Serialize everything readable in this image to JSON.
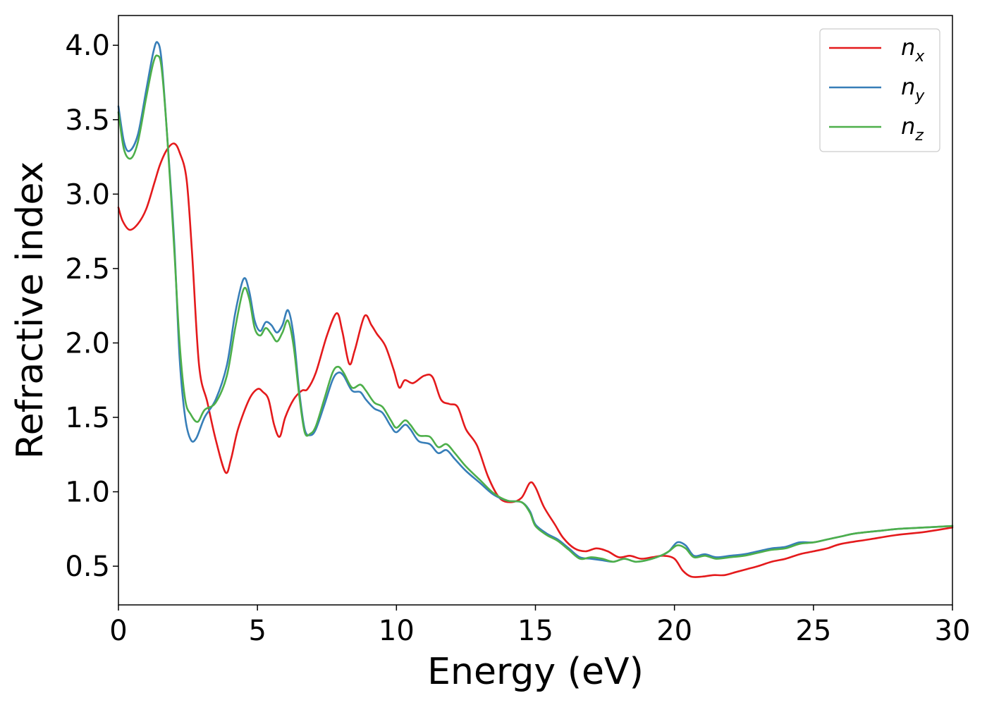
{
  "chart_data": {
    "type": "line",
    "xlabel": "Energy (eV)",
    "ylabel": "Refractive index",
    "xlim": [
      0,
      30
    ],
    "ylim": [
      0.24,
      4.2
    ],
    "xticks": [
      0,
      5,
      10,
      15,
      20,
      25,
      30
    ],
    "xtick_labels": [
      "0",
      "5",
      "10",
      "15",
      "20",
      "25",
      "30"
    ],
    "yticks": [
      0.5,
      1.0,
      1.5,
      2.0,
      2.5,
      3.0,
      3.5,
      4.0
    ],
    "ytick_labels": [
      "0.5",
      "1.0",
      "1.5",
      "2.0",
      "2.5",
      "3.0",
      "3.5",
      "4.0"
    ],
    "grid": false,
    "legend_position": "top-right",
    "series": [
      {
        "name": "n",
        "subscript": "x",
        "color": "#e41a1c",
        "x": [
          0,
          0.15,
          0.4,
          0.7,
          1.0,
          1.3,
          1.5,
          1.75,
          2.0,
          2.2,
          2.45,
          2.65,
          2.9,
          3.2,
          3.5,
          3.85,
          4.05,
          4.3,
          4.7,
          5.0,
          5.2,
          5.4,
          5.6,
          5.8,
          6.0,
          6.3,
          6.6,
          6.8,
          7.1,
          7.5,
          7.85,
          8.05,
          8.3,
          8.5,
          8.85,
          9.1,
          9.3,
          9.6,
          9.9,
          10.1,
          10.3,
          10.6,
          11.0,
          11.3,
          11.6,
          11.9,
          12.2,
          12.5,
          12.9,
          13.3,
          13.7,
          14.1,
          14.5,
          14.8,
          15.0,
          15.3,
          15.7,
          16.0,
          16.4,
          16.8,
          17.2,
          17.6,
          18.0,
          18.4,
          18.8,
          19.2,
          19.6,
          20.0,
          20.3,
          20.6,
          21.0,
          21.4,
          21.8,
          22.2,
          22.6,
          23.0,
          23.5,
          24.0,
          24.5,
          25.0,
          25.5,
          26.0,
          27.0,
          28.0,
          29.0,
          30.0
        ],
        "y": [
          2.91,
          2.82,
          2.76,
          2.8,
          2.9,
          3.08,
          3.2,
          3.3,
          3.34,
          3.28,
          3.1,
          2.6,
          1.85,
          1.6,
          1.35,
          1.13,
          1.22,
          1.42,
          1.62,
          1.69,
          1.67,
          1.62,
          1.45,
          1.37,
          1.5,
          1.62,
          1.68,
          1.69,
          1.8,
          2.05,
          2.2,
          2.08,
          1.86,
          1.95,
          2.18,
          2.12,
          2.06,
          1.98,
          1.82,
          1.7,
          1.75,
          1.73,
          1.78,
          1.77,
          1.62,
          1.59,
          1.57,
          1.42,
          1.31,
          1.1,
          0.96,
          0.93,
          0.96,
          1.06,
          1.03,
          0.9,
          0.78,
          0.69,
          0.62,
          0.6,
          0.62,
          0.6,
          0.56,
          0.57,
          0.55,
          0.56,
          0.57,
          0.55,
          0.47,
          0.43,
          0.43,
          0.44,
          0.44,
          0.46,
          0.48,
          0.5,
          0.53,
          0.55,
          0.58,
          0.6,
          0.62,
          0.65,
          0.68,
          0.71,
          0.73,
          0.76
        ]
      },
      {
        "name": "n",
        "subscript": "y",
        "color": "#377eb8",
        "x": [
          0,
          0.2,
          0.4,
          0.7,
          1.0,
          1.25,
          1.4,
          1.55,
          1.75,
          2.0,
          2.2,
          2.4,
          2.6,
          2.8,
          3.1,
          3.5,
          3.9,
          4.2,
          4.5,
          4.7,
          4.9,
          5.1,
          5.3,
          5.5,
          5.7,
          5.9,
          6.1,
          6.3,
          6.5,
          6.7,
          6.9,
          7.1,
          7.4,
          7.7,
          7.9,
          8.1,
          8.4,
          8.7,
          8.9,
          9.2,
          9.5,
          9.8,
          10.0,
          10.3,
          10.5,
          10.8,
          11.2,
          11.5,
          11.8,
          12.1,
          12.5,
          13.0,
          13.5,
          14.0,
          14.5,
          14.8,
          15.0,
          15.4,
          15.8,
          16.2,
          16.6,
          17.0,
          17.4,
          17.8,
          18.2,
          18.6,
          19.0,
          19.5,
          19.8,
          20.1,
          20.4,
          20.7,
          21.1,
          21.5,
          22.0,
          22.5,
          23.0,
          23.5,
          24.0,
          24.5,
          25.0,
          25.5,
          26.0,
          26.5,
          27.5,
          28.0,
          29.0,
          30.0
        ],
        "y": [
          3.59,
          3.35,
          3.29,
          3.4,
          3.7,
          3.95,
          4.02,
          3.9,
          3.4,
          2.7,
          1.9,
          1.5,
          1.35,
          1.36,
          1.5,
          1.62,
          1.85,
          2.2,
          2.43,
          2.35,
          2.15,
          2.08,
          2.14,
          2.12,
          2.07,
          2.12,
          2.22,
          2.05,
          1.68,
          1.42,
          1.38,
          1.42,
          1.58,
          1.75,
          1.8,
          1.78,
          1.68,
          1.67,
          1.62,
          1.56,
          1.53,
          1.44,
          1.4,
          1.45,
          1.42,
          1.34,
          1.32,
          1.26,
          1.28,
          1.22,
          1.14,
          1.06,
          0.98,
          0.94,
          0.93,
          0.87,
          0.78,
          0.72,
          0.68,
          0.62,
          0.56,
          0.55,
          0.54,
          0.53,
          0.55,
          0.53,
          0.54,
          0.57,
          0.6,
          0.66,
          0.64,
          0.57,
          0.58,
          0.56,
          0.57,
          0.58,
          0.6,
          0.62,
          0.63,
          0.66,
          0.66,
          0.68,
          0.7,
          0.72,
          0.74,
          0.75,
          0.76,
          0.77
        ]
      },
      {
        "name": "n",
        "subscript": "z",
        "color": "#4daf4a",
        "x": [
          0,
          0.2,
          0.45,
          0.7,
          1.0,
          1.25,
          1.4,
          1.55,
          1.75,
          2.0,
          2.2,
          2.4,
          2.6,
          2.85,
          3.1,
          3.5,
          3.9,
          4.2,
          4.5,
          4.7,
          4.9,
          5.1,
          5.3,
          5.5,
          5.7,
          5.9,
          6.1,
          6.3,
          6.5,
          6.7,
          6.9,
          7.1,
          7.4,
          7.7,
          7.9,
          8.1,
          8.4,
          8.7,
          8.9,
          9.2,
          9.5,
          9.8,
          10.0,
          10.3,
          10.5,
          10.8,
          11.2,
          11.5,
          11.8,
          12.1,
          12.5,
          13.0,
          13.5,
          14.0,
          14.5,
          14.8,
          15.0,
          15.4,
          15.8,
          16.2,
          16.6,
          17.0,
          17.4,
          17.8,
          18.2,
          18.6,
          19.0,
          19.5,
          19.8,
          20.1,
          20.4,
          20.7,
          21.1,
          21.5,
          22.0,
          22.5,
          23.0,
          23.5,
          24.0,
          24.5,
          25.0,
          25.5,
          26.0,
          26.5,
          27.5,
          28.0,
          29.0,
          30.0
        ],
        "y": [
          3.55,
          3.3,
          3.24,
          3.35,
          3.65,
          3.88,
          3.93,
          3.85,
          3.4,
          2.65,
          2.0,
          1.62,
          1.52,
          1.47,
          1.55,
          1.6,
          1.78,
          2.1,
          2.36,
          2.3,
          2.1,
          2.05,
          2.1,
          2.06,
          2.01,
          2.07,
          2.15,
          1.98,
          1.65,
          1.4,
          1.39,
          1.44,
          1.62,
          1.8,
          1.84,
          1.8,
          1.7,
          1.72,
          1.68,
          1.6,
          1.57,
          1.48,
          1.43,
          1.48,
          1.45,
          1.38,
          1.37,
          1.3,
          1.32,
          1.26,
          1.17,
          1.08,
          0.99,
          0.94,
          0.93,
          0.86,
          0.77,
          0.71,
          0.67,
          0.61,
          0.55,
          0.56,
          0.55,
          0.53,
          0.55,
          0.53,
          0.54,
          0.57,
          0.6,
          0.64,
          0.62,
          0.56,
          0.57,
          0.55,
          0.56,
          0.57,
          0.59,
          0.61,
          0.62,
          0.65,
          0.66,
          0.68,
          0.7,
          0.72,
          0.74,
          0.75,
          0.76,
          0.77
        ]
      }
    ]
  }
}
